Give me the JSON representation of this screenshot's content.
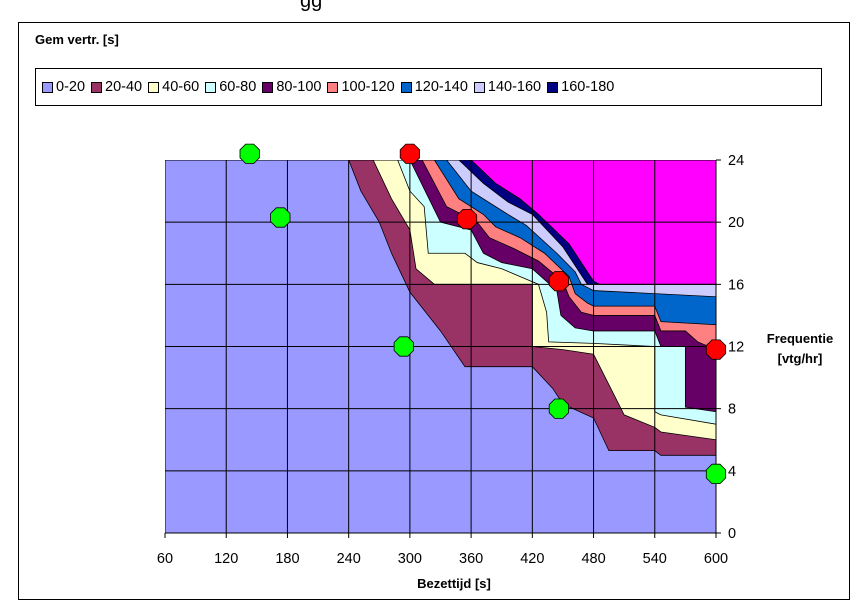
{
  "header_fragment": "gg",
  "chart_data": {
    "type": "area",
    "title": "Gem vertr. [s]",
    "xlabel": "Bezettijd [s]",
    "ylabel": [
      "Frequentie",
      "[vtg/hr]"
    ],
    "xlim": [
      60,
      600
    ],
    "ylim": [
      0,
      24
    ],
    "x_ticks": [
      60,
      120,
      180,
      240,
      300,
      360,
      420,
      480,
      540,
      600
    ],
    "y_ticks": [
      0,
      4,
      8,
      12,
      16,
      20,
      24
    ],
    "y_axis_side": "right",
    "grid": true,
    "legend_position": "top",
    "plot_background": "#9999ff",
    "over_range_color": "#ff00ff",
    "series": [
      {
        "name": "0-20",
        "color": "#9999ff"
      },
      {
        "name": "20-40",
        "color": "#993366"
      },
      {
        "name": "40-60",
        "color": "#ffffcc"
      },
      {
        "name": "60-80",
        "color": "#ccffff"
      },
      {
        "name": "80-100",
        "color": "#660066"
      },
      {
        "name": "100-120",
        "color": "#ff8080"
      },
      {
        "name": "120-140",
        "color": "#0066cc"
      },
      {
        "name": "140-160",
        "color": "#ccccff"
      },
      {
        "name": "160-180",
        "color": "#000080"
      }
    ],
    "contour_boundaries": [
      {
        "lower": "0-20",
        "upper": "20-40",
        "points": [
          [
            240,
            24
          ],
          [
            252,
            22
          ],
          [
            270,
            20
          ],
          [
            282,
            18
          ],
          [
            300,
            15.5
          ],
          [
            330,
            13
          ],
          [
            354,
            10.7
          ],
          [
            420,
            10.7
          ],
          [
            440,
            9.3
          ],
          [
            450,
            8.3
          ],
          [
            480,
            7.4
          ],
          [
            495,
            5.3
          ],
          [
            540,
            5.3
          ],
          [
            546,
            5
          ],
          [
            600,
            5
          ]
        ]
      },
      {
        "lower": "20-40",
        "upper": "40-60",
        "points": [
          [
            264,
            24
          ],
          [
            282,
            21.5
          ],
          [
            300,
            19.5
          ],
          [
            306,
            17
          ],
          [
            324,
            16
          ],
          [
            384,
            16
          ],
          [
            420,
            16
          ],
          [
            420,
            12
          ],
          [
            450,
            11.8
          ],
          [
            480,
            11.5
          ],
          [
            510,
            7.6
          ],
          [
            540,
            6.8
          ],
          [
            546,
            6.5
          ],
          [
            600,
            6
          ]
        ]
      },
      {
        "lower": "40-60",
        "upper": "60-80",
        "points": [
          [
            288,
            24
          ],
          [
            300,
            22
          ],
          [
            314,
            21
          ],
          [
            318,
            18
          ],
          [
            354,
            18
          ],
          [
            366,
            17.4
          ],
          [
            390,
            17
          ],
          [
            426,
            16
          ],
          [
            434,
            14.2
          ],
          [
            436,
            12.3
          ],
          [
            480,
            12.2
          ],
          [
            540,
            12
          ],
          [
            540,
            7.8
          ],
          [
            546,
            7.6
          ],
          [
            600,
            7
          ]
        ]
      },
      {
        "lower": "60-80",
        "upper": "80-100",
        "points": [
          [
            300,
            24
          ],
          [
            330,
            20
          ],
          [
            360,
            19.5
          ],
          [
            372,
            18
          ],
          [
            390,
            17.4
          ],
          [
            420,
            17
          ],
          [
            444,
            15.6
          ],
          [
            448,
            14
          ],
          [
            462,
            13.2
          ],
          [
            480,
            13
          ],
          [
            540,
            13
          ],
          [
            546,
            12
          ],
          [
            570,
            12
          ],
          [
            570,
            8.1
          ],
          [
            600,
            7.8
          ]
        ]
      },
      {
        "lower": "80-100",
        "upper": "100-120",
        "points": [
          [
            312,
            24
          ],
          [
            336,
            21
          ],
          [
            366,
            20
          ],
          [
            378,
            19
          ],
          [
            402,
            18.3
          ],
          [
            426,
            17.5
          ],
          [
            450,
            16.2
          ],
          [
            456,
            15.2
          ],
          [
            468,
            14.2
          ],
          [
            480,
            14
          ],
          [
            540,
            14
          ],
          [
            546,
            13
          ],
          [
            570,
            13
          ],
          [
            582,
            12.3
          ],
          [
            600,
            11.8
          ]
        ]
      },
      {
        "lower": "100-120",
        "upper": "120-140",
        "points": [
          [
            324,
            24
          ],
          [
            348,
            21.5
          ],
          [
            372,
            20.5
          ],
          [
            384,
            19.7
          ],
          [
            408,
            19
          ],
          [
            432,
            18
          ],
          [
            456,
            16.5
          ],
          [
            462,
            15.4
          ],
          [
            474,
            14.8
          ],
          [
            480,
            14.6
          ],
          [
            540,
            14.6
          ],
          [
            546,
            13.6
          ],
          [
            600,
            13.4
          ]
        ]
      },
      {
        "lower": "120-140",
        "upper": "140-160",
        "points": [
          [
            336,
            24
          ],
          [
            360,
            22
          ],
          [
            384,
            21
          ],
          [
            396,
            20.5
          ],
          [
            414,
            19.8
          ],
          [
            444,
            18
          ],
          [
            462,
            16.8
          ],
          [
            468,
            16
          ],
          [
            480,
            15.6
          ],
          [
            540,
            15.4
          ],
          [
            600,
            15.2
          ]
        ]
      },
      {
        "lower": "140-160",
        "upper": "160-180",
        "points": [
          [
            348,
            24
          ],
          [
            372,
            22.5
          ],
          [
            396,
            21.3
          ],
          [
            420,
            20.5
          ],
          [
            450,
            18.4
          ],
          [
            468,
            16.6
          ],
          [
            474,
            16
          ],
          [
            600,
            16
          ]
        ]
      },
      {
        "lower": "160-180",
        "upper": "over",
        "points": [
          [
            360,
            24
          ],
          [
            384,
            22.5
          ],
          [
            408,
            21.5
          ],
          [
            426,
            20.5
          ],
          [
            456,
            18.6
          ],
          [
            480,
            16.2
          ],
          [
            486,
            16
          ],
          [
            600,
            16
          ]
        ]
      }
    ],
    "markers_green": [
      [
        143,
        24.4
      ],
      [
        173,
        20.3
      ],
      [
        294,
        12
      ],
      [
        446,
        8
      ],
      [
        600,
        3.8
      ]
    ],
    "markers_red": [
      [
        300,
        24.4
      ],
      [
        356,
        20.2
      ],
      [
        446,
        16.2
      ],
      [
        600,
        11.8
      ]
    ]
  }
}
